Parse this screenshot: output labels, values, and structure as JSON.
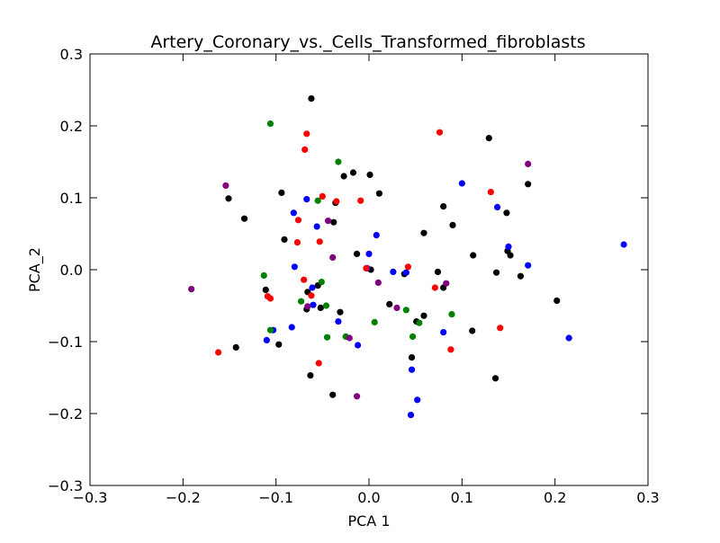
{
  "chart_data": {
    "type": "scatter",
    "title": "Artery_Coronary_vs._Cells_Transformed_fibroblasts",
    "xlabel": "PCA 1",
    "ylabel": "PCA_2",
    "xlim": [
      -0.3,
      0.3
    ],
    "ylim": [
      -0.3,
      0.3
    ],
    "xticks": [
      "−0.3",
      "−0.2",
      "−0.1",
      "0.0",
      "0.1",
      "0.2",
      "0.3"
    ],
    "yticks": [
      "−0.3",
      "−0.2",
      "−0.1",
      "0.0",
      "0.1",
      "0.2",
      "0.3"
    ],
    "xtick_values": [
      -0.3,
      -0.2,
      -0.1,
      0.0,
      0.1,
      0.2,
      0.3
    ],
    "ytick_values": [
      -0.3,
      -0.2,
      -0.1,
      0.0,
      0.1,
      0.2,
      0.3
    ],
    "grid": false,
    "series": [
      {
        "color": "#000000",
        "points": [
          [
            -0.062,
            0.238
          ],
          [
            0.129,
            0.183
          ],
          [
            -0.017,
            0.135
          ],
          [
            0.001,
            0.132
          ],
          [
            -0.027,
            0.13
          ],
          [
            0.171,
            0.119
          ],
          [
            -0.094,
            0.107
          ],
          [
            0.011,
            0.106
          ],
          [
            -0.151,
            0.099
          ],
          [
            -0.036,
            0.093
          ],
          [
            0.08,
            0.088
          ],
          [
            0.148,
            0.079
          ],
          [
            -0.134,
            0.071
          ],
          [
            -0.038,
            0.066
          ],
          [
            0.09,
            0.062
          ],
          [
            0.059,
            0.051
          ],
          [
            -0.091,
            0.042
          ],
          [
            0.149,
            0.026
          ],
          [
            -0.013,
            0.022
          ],
          [
            0.112,
            0.02
          ],
          [
            0.152,
            0.02
          ],
          [
            0.137,
            -0.004
          ],
          [
            0.074,
            -0.003
          ],
          [
            0.163,
            -0.009
          ],
          [
            -0.055,
            -0.022
          ],
          [
            0.08,
            -0.025
          ],
          [
            -0.066,
            -0.031
          ],
          [
            0.202,
            -0.043
          ],
          [
            0.022,
            -0.048
          ],
          [
            -0.067,
            -0.055
          ],
          [
            -0.052,
            -0.053
          ],
          [
            -0.031,
            -0.059
          ],
          [
            0.059,
            -0.064
          ],
          [
            0.051,
            -0.072
          ],
          [
            0.111,
            -0.085
          ],
          [
            -0.097,
            -0.104
          ],
          [
            -0.143,
            -0.108
          ],
          [
            -0.063,
            -0.147
          ],
          [
            0.136,
            -0.151
          ],
          [
            -0.039,
            -0.174
          ],
          [
            -0.111,
            -0.028
          ],
          [
            0.046,
            -0.122
          ],
          [
            0.038,
            -0.006
          ],
          [
            0.002,
            0.0
          ]
        ]
      },
      {
        "color": "#0000ff",
        "points": [
          [
            0.274,
            0.035
          ],
          [
            0.1,
            0.12
          ],
          [
            0.138,
            0.087
          ],
          [
            -0.067,
            0.098
          ],
          [
            -0.081,
            0.079
          ],
          [
            -0.056,
            0.06
          ],
          [
            0.008,
            0.048
          ],
          [
            0.15,
            0.032
          ],
          [
            -0.0,
            0.022
          ],
          [
            0.171,
            0.006
          ],
          [
            -0.08,
            0.004
          ],
          [
            -0.002,
            0.002
          ],
          [
            0.026,
            -0.003
          ],
          [
            0.04,
            -0.004
          ],
          [
            -0.061,
            -0.025
          ],
          [
            -0.06,
            -0.049
          ],
          [
            -0.033,
            -0.072
          ],
          [
            -0.083,
            -0.08
          ],
          [
            0.08,
            -0.087
          ],
          [
            -0.103,
            -0.084
          ],
          [
            0.215,
            -0.095
          ],
          [
            -0.11,
            -0.098
          ],
          [
            -0.012,
            -0.105
          ],
          [
            0.046,
            -0.139
          ],
          [
            0.052,
            -0.181
          ],
          [
            0.045,
            -0.202
          ]
        ]
      },
      {
        "color": "#ff0000",
        "points": [
          [
            -0.067,
            0.189
          ],
          [
            0.076,
            0.191
          ],
          [
            -0.069,
            0.167
          ],
          [
            0.131,
            0.108
          ],
          [
            -0.05,
            0.102
          ],
          [
            -0.035,
            0.095
          ],
          [
            -0.009,
            0.096
          ],
          [
            -0.076,
            0.069
          ],
          [
            -0.053,
            0.039
          ],
          [
            -0.077,
            0.038
          ],
          [
            0.042,
            0.004
          ],
          [
            -0.003,
            0.002
          ],
          [
            -0.07,
            -0.014
          ],
          [
            -0.109,
            -0.037
          ],
          [
            -0.106,
            -0.04
          ],
          [
            -0.062,
            -0.036
          ],
          [
            0.071,
            -0.025
          ],
          [
            0.141,
            -0.081
          ],
          [
            0.088,
            -0.111
          ],
          [
            -0.162,
            -0.115
          ],
          [
            -0.054,
            -0.13
          ]
        ]
      },
      {
        "color": "#008000",
        "points": [
          [
            -0.106,
            0.203
          ],
          [
            -0.033,
            0.15
          ],
          [
            -0.055,
            0.096
          ],
          [
            -0.113,
            -0.008
          ],
          [
            -0.051,
            -0.017
          ],
          [
            -0.073,
            -0.044
          ],
          [
            -0.046,
            -0.05
          ],
          [
            0.04,
            -0.056
          ],
          [
            0.006,
            -0.073
          ],
          [
            0.054,
            -0.074
          ],
          [
            0.089,
            -0.062
          ],
          [
            -0.106,
            -0.084
          ],
          [
            -0.045,
            -0.094
          ],
          [
            -0.025,
            -0.093
          ],
          [
            0.047,
            -0.093
          ]
        ]
      },
      {
        "color": "#800080",
        "points": [
          [
            0.171,
            0.147
          ],
          [
            -0.154,
            0.117
          ],
          [
            -0.044,
            0.068
          ],
          [
            -0.039,
            0.017
          ],
          [
            0.01,
            -0.018
          ],
          [
            0.083,
            -0.019
          ],
          [
            -0.191,
            -0.027
          ],
          [
            -0.066,
            -0.051
          ],
          [
            0.03,
            -0.053
          ],
          [
            -0.021,
            -0.095
          ],
          [
            -0.013,
            -0.176
          ]
        ]
      }
    ]
  }
}
